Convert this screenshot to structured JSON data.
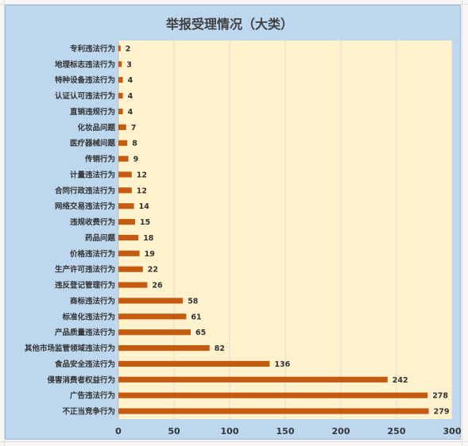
{
  "chart_data": {
    "type": "bar",
    "orientation": "horizontal",
    "title": "举报受理情况（大类）",
    "xlabel": "",
    "ylabel": "",
    "xlim": [
      0,
      300
    ],
    "x_ticks": [
      "0",
      "50",
      "100",
      "150",
      "200",
      "250",
      "300"
    ],
    "grid": "vertical",
    "data_labels": true,
    "categories": [
      "专利违法行为",
      "地理标志违法行为",
      "特种设备违法行为",
      "认证认可违法行为",
      "直销违规行为",
      "化妆品问题",
      "医疗器械问题",
      "传销行为",
      "计量违法行为",
      "合同行政违法行为",
      "网络交易违法行为",
      "违规收费行为",
      "药品问题",
      "价格违法行为",
      "生产许可违法行为",
      "违反登记管理行为",
      "商标违法行为",
      "标准化违法行为",
      "产品质量违法行为",
      "其他市场监管领域违法行为",
      "食品安全违法行为",
      "侵害消费者权益行为",
      "广告违法行为",
      "不正当竞争行为"
    ],
    "values": [
      2,
      3,
      4,
      4,
      4,
      7,
      8,
      9,
      12,
      12,
      14,
      15,
      18,
      19,
      22,
      26,
      58,
      61,
      65,
      82,
      136,
      242,
      278,
      279
    ],
    "colors": {
      "bar": "#c55a11",
      "plot_background": "#fff2cc",
      "chart_background": "#bdd7ee",
      "gridline": "#d9d9d9",
      "text": "#333333",
      "title": "#404040"
    }
  }
}
